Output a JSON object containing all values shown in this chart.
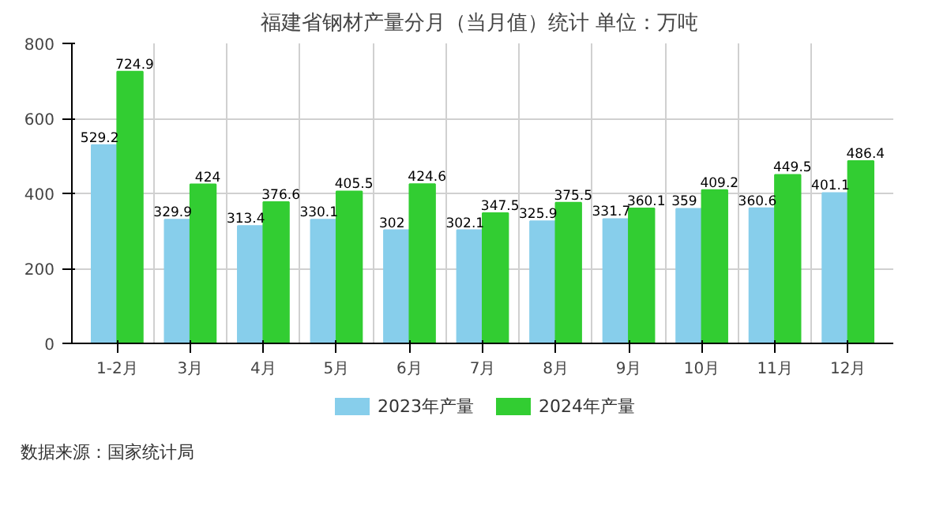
{
  "chart_data": {
    "type": "bar",
    "title": "福建省钢材产量分月（当月值）统计  单位：万吨",
    "categories": [
      "1-2月",
      "3月",
      "4月",
      "5月",
      "6月",
      "7月",
      "8月",
      "9月",
      "10月",
      "11月",
      "12月"
    ],
    "series": [
      {
        "name": "2023年产量",
        "color": "#87ceeb",
        "values": [
          529.2,
          329.9,
          313.4,
          330.1,
          302,
          302.1,
          325.9,
          331.7,
          359,
          360.6,
          401.1
        ]
      },
      {
        "name": "2024年产量",
        "color": "#32cd32",
        "values": [
          724.9,
          424,
          376.6,
          405.5,
          424.6,
          347.5,
          375.5,
          360.1,
          409.2,
          449.5,
          486.4
        ]
      }
    ],
    "ylim": [
      0,
      800
    ],
    "yticks": [
      0,
      200,
      400,
      600,
      800
    ],
    "grid": true,
    "legend": "bottom",
    "data_labels": true,
    "annotations": [
      "数据来源：国家统计局"
    ]
  }
}
